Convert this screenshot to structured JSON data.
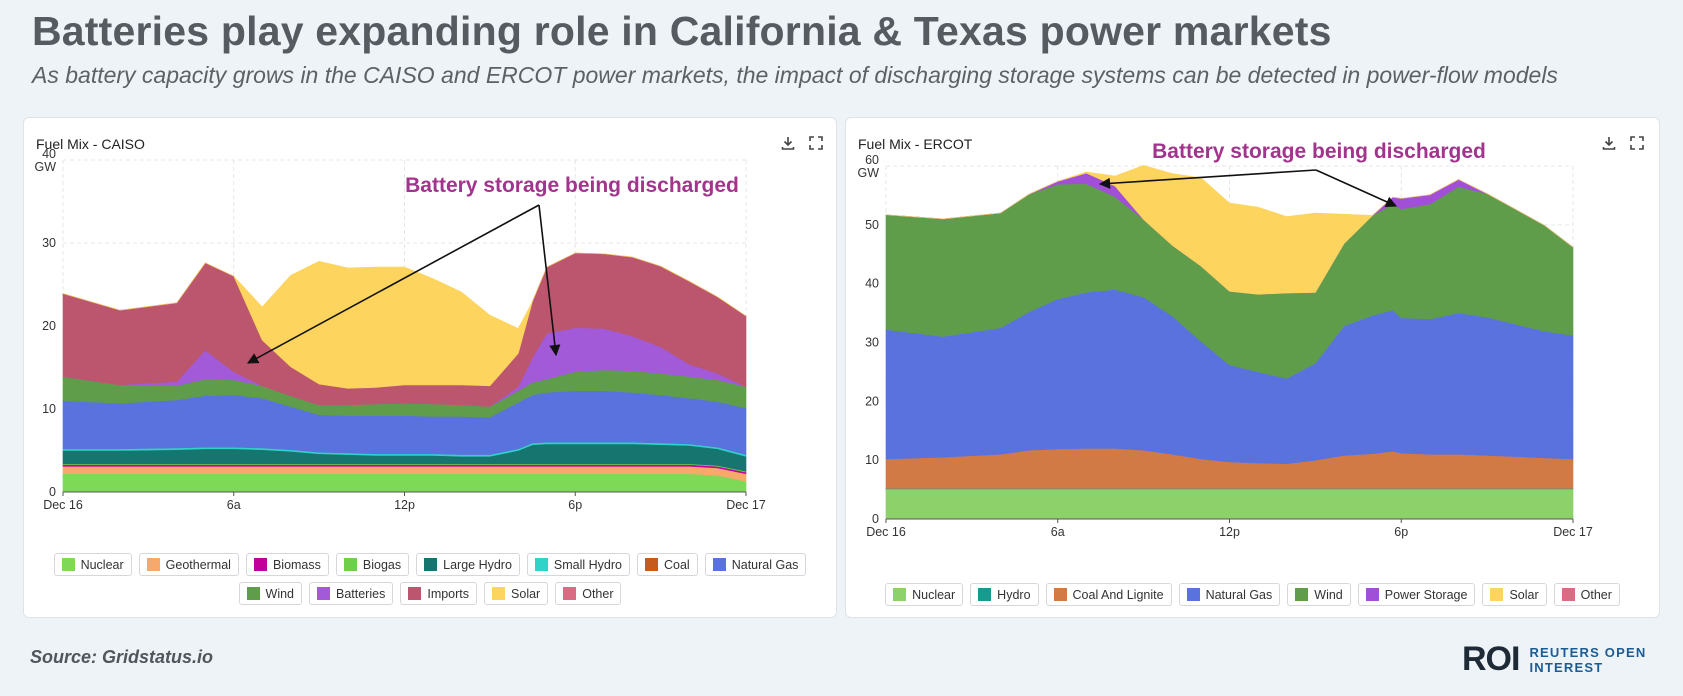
{
  "title": "Batteries play expanding role in California & Texas power markets",
  "subtitle": "As battery capacity grows in the CAISO and ERCOT power markets, the impact of discharging storage systems can be detected in power-flow models",
  "source": "Source:  Gridstatus.io",
  "logo": {
    "mark": "ROI",
    "line1": "REUTERS OPEN",
    "line2": "INTEREST"
  },
  "chart_data": [
    {
      "type": "area",
      "stacked": true,
      "title": "Fuel Mix - CAISO",
      "ylabel": "GW",
      "ylim": [
        0,
        40
      ],
      "yticks": [
        0,
        10,
        20,
        30,
        40
      ],
      "x_ticks": [
        "Dec 16",
        "6a",
        "12p",
        "6p",
        "Dec 17"
      ],
      "x": [
        0,
        2,
        4,
        5,
        6,
        7,
        8,
        9,
        10,
        11,
        12,
        13,
        14,
        15,
        16,
        16.5,
        17,
        18,
        19,
        20,
        21,
        22,
        23,
        24
      ],
      "annotation": "Battery storage being discharged",
      "series": [
        {
          "name": "Nuclear",
          "color": "#7ed957",
          "values": [
            2.2,
            2.2,
            2.2,
            2.2,
            2.2,
            2.2,
            2.2,
            2.2,
            2.2,
            2.2,
            2.2,
            2.2,
            2.2,
            2.2,
            2.2,
            2.2,
            2.2,
            2.2,
            2.2,
            2.2,
            2.2,
            2.2,
            2.0,
            1.3
          ]
        },
        {
          "name": "Geothermal",
          "color": "#f7a86b",
          "values": [
            0.9,
            0.9,
            0.9,
            0.9,
            0.9,
            0.9,
            0.9,
            0.9,
            0.9,
            0.9,
            0.9,
            0.9,
            0.9,
            0.9,
            0.9,
            0.9,
            0.9,
            0.9,
            0.9,
            0.9,
            0.9,
            0.9,
            0.9,
            0.9
          ]
        },
        {
          "name": "Biomass",
          "color": "#c4009a",
          "values": [
            0.2,
            0.2,
            0.2,
            0.2,
            0.2,
            0.2,
            0.2,
            0.2,
            0.2,
            0.2,
            0.2,
            0.2,
            0.2,
            0.2,
            0.2,
            0.2,
            0.2,
            0.2,
            0.2,
            0.2,
            0.2,
            0.2,
            0.2,
            0.2
          ]
        },
        {
          "name": "Biogas",
          "color": "#6fcf4a",
          "values": [
            0.1,
            0.1,
            0.1,
            0.1,
            0.1,
            0.1,
            0.1,
            0.1,
            0.1,
            0.1,
            0.1,
            0.1,
            0.1,
            0.1,
            0.1,
            0.1,
            0.1,
            0.1,
            0.1,
            0.1,
            0.1,
            0.1,
            0.1,
            0.1
          ]
        },
        {
          "name": "Large Hydro",
          "color": "#16756f",
          "values": [
            1.6,
            1.6,
            1.7,
            1.8,
            1.8,
            1.7,
            1.5,
            1.2,
            1.1,
            1.0,
            1.0,
            1.0,
            0.9,
            0.9,
            1.6,
            2.3,
            2.4,
            2.4,
            2.4,
            2.4,
            2.3,
            2.2,
            2.0,
            1.8
          ]
        },
        {
          "name": "Small Hydro",
          "color": "#2fd3c7",
          "values": [
            0.2,
            0.2,
            0.2,
            0.2,
            0.2,
            0.2,
            0.2,
            0.2,
            0.2,
            0.2,
            0.2,
            0.2,
            0.2,
            0.2,
            0.2,
            0.2,
            0.2,
            0.2,
            0.2,
            0.2,
            0.2,
            0.2,
            0.2,
            0.2
          ]
        },
        {
          "name": "Coal",
          "color": "#c65b1e",
          "values": [
            0.0,
            0.0,
            0.0,
            0.0,
            0.0,
            0.0,
            0.0,
            0.0,
            0.0,
            0.0,
            0.0,
            0.0,
            0.0,
            0.0,
            0.0,
            0.0,
            0.0,
            0.0,
            0.0,
            0.0,
            0.0,
            0.0,
            0.0,
            0.0
          ]
        },
        {
          "name": "Natural Gas",
          "color": "#5a72de",
          "values": [
            5.8,
            5.5,
            5.8,
            6.2,
            6.3,
            6.0,
            5.2,
            4.5,
            4.5,
            4.6,
            4.6,
            4.5,
            4.6,
            4.5,
            5.6,
            5.8,
            6.0,
            6.2,
            6.2,
            6.0,
            5.8,
            5.5,
            5.5,
            5.6
          ]
        },
        {
          "name": "Wind",
          "color": "#5f9d4a",
          "values": [
            2.9,
            2.2,
            1.7,
            2.0,
            1.8,
            1.5,
            1.3,
            1.2,
            1.3,
            1.4,
            1.5,
            1.5,
            1.4,
            1.3,
            1.4,
            1.5,
            1.6,
            2.3,
            2.5,
            2.6,
            2.6,
            2.6,
            2.6,
            2.6
          ]
        },
        {
          "name": "Batteries",
          "color": "#a25ad8",
          "values": [
            0.0,
            0.0,
            0.5,
            3.5,
            1.0,
            0.0,
            0.0,
            0.0,
            0.0,
            0.0,
            0.0,
            0.0,
            0.0,
            0.0,
            0.5,
            3.0,
            5.5,
            5.3,
            5.0,
            4.2,
            3.2,
            1.5,
            0.8,
            0.0
          ]
        },
        {
          "name": "Imports",
          "color": "#bc566e",
          "values": [
            10.0,
            9.0,
            9.5,
            10.5,
            11.5,
            5.5,
            3.5,
            2.5,
            2.0,
            2.0,
            2.2,
            2.3,
            2.4,
            2.5,
            4.0,
            6.8,
            8.0,
            9.0,
            9.0,
            9.5,
            9.7,
            10.0,
            9.2,
            8.5
          ]
        },
        {
          "name": "Solar",
          "color": "#fcd45e",
          "values": [
            0.0,
            0.0,
            0.0,
            0.0,
            0.0,
            4.0,
            11.0,
            14.8,
            14.5,
            14.5,
            14.2,
            12.8,
            11.2,
            8.5,
            3.0,
            0.0,
            0.0,
            0.0,
            0.0,
            0.0,
            0.0,
            0.0,
            0.0,
            0.0
          ]
        },
        {
          "name": "Other",
          "color": "#d96b83",
          "values": [
            0.0,
            0.0,
            0.0,
            0.0,
            0.0,
            0.0,
            0.0,
            0.0,
            0.0,
            0.0,
            0.0,
            0.0,
            0.0,
            0.0,
            0.0,
            0.0,
            0.0,
            0.0,
            0.0,
            0.0,
            0.0,
            0.0,
            0.0,
            0.0
          ]
        }
      ]
    },
    {
      "type": "area",
      "stacked": true,
      "title": "Fuel Mix - ERCOT",
      "ylabel": "GW",
      "ylim": [
        0,
        60
      ],
      "yticks": [
        0,
        10,
        20,
        30,
        40,
        50,
        60
      ],
      "x_ticks": [
        "Dec 16",
        "6a",
        "12p",
        "6p",
        "Dec 17"
      ],
      "x": [
        0,
        2,
        4,
        5,
        6,
        7,
        8,
        9,
        10,
        11,
        12,
        13,
        14,
        15,
        16,
        17,
        17.7,
        18,
        19,
        20,
        21,
        22,
        23,
        24
      ],
      "annotation": "Battery storage being discharged",
      "series": [
        {
          "name": "Nuclear",
          "color": "#8dd16a",
          "values": [
            5.1,
            5.1,
            5.1,
            5.1,
            5.1,
            5.1,
            5.1,
            5.1,
            5.1,
            5.1,
            5.1,
            5.1,
            5.1,
            5.1,
            5.1,
            5.1,
            5.1,
            5.1,
            5.1,
            5.1,
            5.1,
            5.1,
            5.1,
            5.1
          ]
        },
        {
          "name": "Hydro",
          "color": "#169c8f",
          "values": [
            0.1,
            0.1,
            0.1,
            0.1,
            0.1,
            0.1,
            0.1,
            0.1,
            0.1,
            0.1,
            0.1,
            0.1,
            0.1,
            0.1,
            0.1,
            0.1,
            0.1,
            0.1,
            0.1,
            0.1,
            0.1,
            0.1,
            0.1,
            0.1
          ]
        },
        {
          "name": "Coal And Lignite",
          "color": "#d27a46",
          "values": [
            5.0,
            5.3,
            5.8,
            6.5,
            6.7,
            6.8,
            6.8,
            6.5,
            5.8,
            5.0,
            4.5,
            4.3,
            4.2,
            4.8,
            5.6,
            5.9,
            6.3,
            6.0,
            5.8,
            5.8,
            5.6,
            5.4,
            5.2,
            5.0
          ]
        },
        {
          "name": "Natural Gas",
          "color": "#5a72de",
          "values": [
            22.0,
            20.5,
            21.5,
            23.5,
            25.5,
            26.5,
            27.0,
            26.0,
            23.5,
            20.0,
            16.5,
            15.5,
            14.5,
            16.5,
            22.0,
            23.5,
            24.0,
            23.0,
            23.0,
            24.0,
            23.5,
            22.5,
            21.5,
            21.0
          ]
        },
        {
          "name": "Wind",
          "color": "#5f9d4a",
          "values": [
            19.5,
            20.0,
            19.5,
            20.0,
            19.5,
            18.5,
            15.8,
            13.2,
            12.0,
            12.8,
            12.5,
            13.2,
            14.5,
            12.0,
            14.0,
            17.0,
            18.0,
            18.5,
            19.5,
            21.5,
            21.0,
            19.5,
            18.0,
            15.0
          ]
        },
        {
          "name": "Power Storage",
          "color": "#a24fd8",
          "values": [
            0.0,
            0.0,
            0.0,
            0.0,
            0.5,
            1.8,
            1.8,
            0.0,
            0.0,
            0.0,
            0.0,
            0.0,
            0.0,
            0.0,
            0.0,
            0.0,
            1.2,
            1.8,
            1.6,
            1.2,
            0.0,
            0.0,
            0.0,
            0.0
          ]
        },
        {
          "name": "Solar",
          "color": "#fcd45e",
          "values": [
            0.0,
            0.0,
            0.0,
            0.0,
            0.0,
            0.2,
            1.7,
            9.2,
            12.2,
            15.0,
            15.0,
            14.8,
            13.0,
            13.5,
            5.0,
            0.0,
            0.0,
            0.0,
            0.0,
            0.0,
            0.0,
            0.0,
            0.0,
            0.0
          ]
        },
        {
          "name": "Other",
          "color": "#d96b83",
          "values": [
            0.0,
            0.0,
            0.0,
            0.0,
            0.0,
            0.0,
            0.0,
            0.0,
            0.0,
            0.0,
            0.0,
            0.0,
            0.0,
            0.0,
            0.0,
            0.0,
            0.0,
            0.0,
            0.0,
            0.0,
            0.0,
            0.0,
            0.0,
            0.0
          ]
        }
      ]
    }
  ]
}
